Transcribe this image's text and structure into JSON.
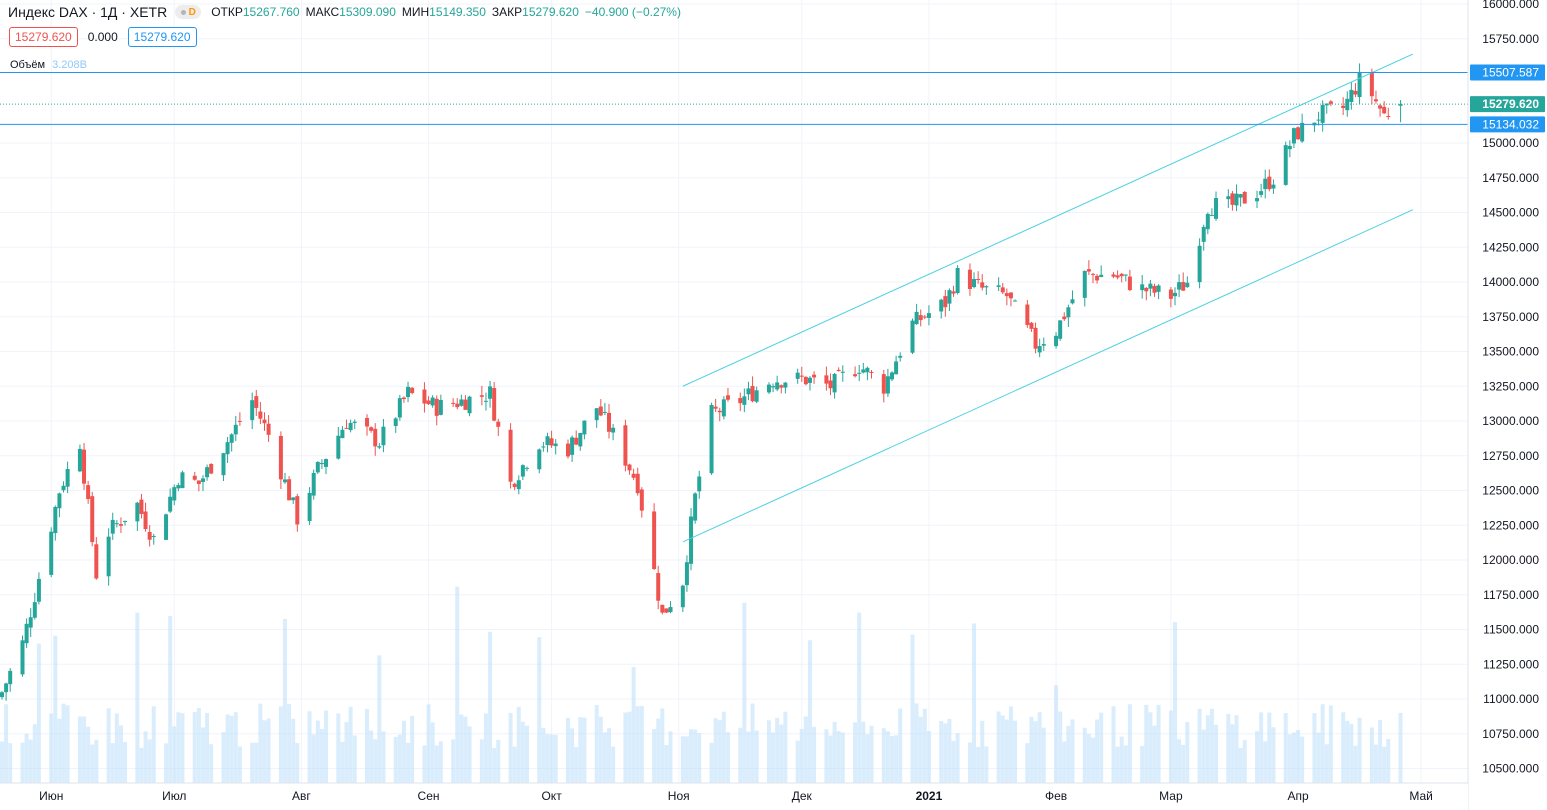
{
  "legend": {
    "symbol": "Индекс DAX · 1Д · XETR",
    "eye_badge": "D",
    "open_label": "ОТКР",
    "open": "15267.760",
    "high_label": "МАКС",
    "high": "15309.090",
    "low_label": "МИН",
    "low": "15149.350",
    "close_label": "ЗАКР",
    "close": "15279.620",
    "change": "−40.900 (−0.27%)"
  },
  "price_boxes": {
    "bid": "15279.620",
    "spread": "0.000",
    "ask": "15279.620"
  },
  "volume_legend": {
    "label": "Объём",
    "value": "3.208B"
  },
  "price_axis": {
    "ticks": [
      "16000.000",
      "15750.000",
      "15507.587",
      "15279.620",
      "15134.032",
      "15000.000",
      "14750.000",
      "14500.000",
      "14250.000",
      "14000.000",
      "13750.000",
      "13500.000",
      "13250.000",
      "13000.000",
      "12750.000",
      "12500.000",
      "12250.000",
      "12000.000",
      "11750.000",
      "11500.000",
      "11250.000",
      "11000.000",
      "10750.000",
      "10500.000"
    ],
    "labels": {
      "upper_level": "15507.587",
      "last_price": "15279.620",
      "lower_level": "15134.032"
    }
  },
  "time_axis": {
    "ticks": [
      "Июн",
      "Июл",
      "Авг",
      "Сен",
      "Окт",
      "Ноя",
      "Дек",
      "2021",
      "Фев",
      "Мар",
      "Апр",
      "Май"
    ]
  },
  "colors": {
    "up": "#26a69a",
    "down": "#ef5350",
    "volume": "#bbdefb",
    "channel": "#4dd0e1",
    "hline": "#2196f3",
    "grid": "#f0f3fa"
  },
  "chart_data": {
    "type": "candlestick",
    "title": "Индекс DAX · 1Д · XETR",
    "ylim": [
      10450,
      16000
    ],
    "x_range": [
      "2020-05-20",
      "2021-05-10"
    ],
    "last_bar": {
      "open": 15267.76,
      "high": 15309.09,
      "low": 15149.35,
      "close": 15279.62
    },
    "horizontal_levels": [
      15507.587,
      15134.032
    ],
    "last_price_line": 15279.62,
    "channel": {
      "upper": [
        [
          "2020-11-02",
          13250
        ],
        [
          "2021-04-29",
          15640
        ]
      ],
      "lower": [
        [
          "2020-11-02",
          12130
        ],
        [
          "2021-04-29",
          14520
        ]
      ]
    },
    "close_path": [
      [
        "2020-05-20",
        11050
      ],
      [
        "2020-05-25",
        11400
      ],
      [
        "2020-05-28",
        11750
      ],
      [
        "2020-06-03",
        12500
      ],
      [
        "2020-06-08",
        12850
      ],
      [
        "2020-06-12",
        11900
      ],
      [
        "2020-06-15",
        12200
      ],
      [
        "2020-06-22",
        12400
      ],
      [
        "2020-06-26",
        12150
      ],
      [
        "2020-07-02",
        12600
      ],
      [
        "2020-07-07",
        12550
      ],
      [
        "2020-07-15",
        12900
      ],
      [
        "2020-07-20",
        13150
      ],
      [
        "2020-07-24",
        12900
      ],
      [
        "2020-07-31",
        12300
      ],
      [
        "2020-08-05",
        12650
      ],
      [
        "2020-08-12",
        13000
      ],
      [
        "2020-08-20",
        12850
      ],
      [
        "2020-08-27",
        13200
      ],
      [
        "2020-09-03",
        13100
      ],
      [
        "2020-09-10",
        13150
      ],
      [
        "2020-09-16",
        13200
      ],
      [
        "2020-09-21",
        12550
      ],
      [
        "2020-09-28",
        12850
      ],
      [
        "2020-10-05",
        12800
      ],
      [
        "2020-10-12",
        13100
      ],
      [
        "2020-10-16",
        12900
      ],
      [
        "2020-10-22",
        12550
      ],
      [
        "2020-10-28",
        11600
      ],
      [
        "2020-11-02",
        11850
      ],
      [
        "2020-11-05",
        12450
      ],
      [
        "2020-11-09",
        13050
      ],
      [
        "2020-11-16",
        13150
      ],
      [
        "2020-11-24",
        13300
      ],
      [
        "2020-12-02",
        13300
      ],
      [
        "2020-12-08",
        13250
      ],
      [
        "2020-12-15",
        13400
      ],
      [
        "2020-12-21",
        13250
      ],
      [
        "2020-12-28",
        13700
      ],
      [
        "2021-01-05",
        13850
      ],
      [
        "2021-01-08",
        14050
      ],
      [
        "2021-01-14",
        13950
      ],
      [
        "2021-01-20",
        13900
      ],
      [
        "2021-01-27",
        13550
      ],
      [
        "2021-02-01",
        13650
      ],
      [
        "2021-02-08",
        14050
      ],
      [
        "2021-02-15",
        14050
      ],
      [
        "2021-02-22",
        13950
      ],
      [
        "2021-03-01",
        13900
      ],
      [
        "2021-03-05",
        14000
      ],
      [
        "2021-03-10",
        14550
      ],
      [
        "2021-03-16",
        14550
      ],
      [
        "2021-03-22",
        14650
      ],
      [
        "2021-03-26",
        14750
      ],
      [
        "2021-03-31",
        15050
      ],
      [
        "2021-04-06",
        15200
      ],
      [
        "2021-04-12",
        15250
      ],
      [
        "2021-04-16",
        15450
      ],
      [
        "2021-04-19",
        15350
      ],
      [
        "2021-04-22",
        15200
      ],
      [
        "2021-04-26",
        15279.62
      ]
    ],
    "volume_avg": "3.208B"
  }
}
